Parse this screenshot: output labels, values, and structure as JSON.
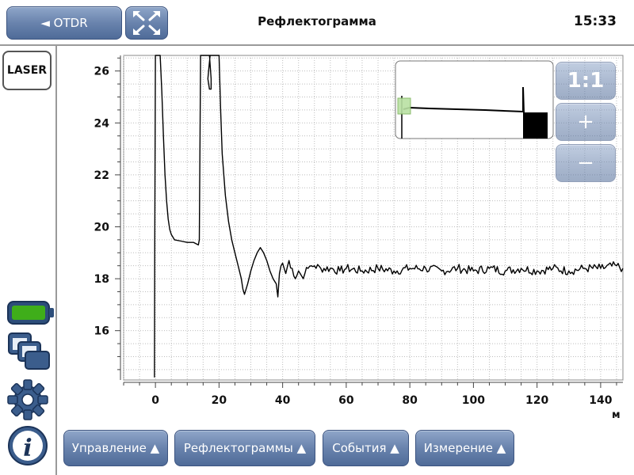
{
  "header": {
    "back_label": "◄ OTDR",
    "title": "Рефлектограмма",
    "clock": "15:33"
  },
  "sidebar": {
    "laser_label": "LASER",
    "icons": [
      "battery-icon",
      "windows-icon",
      "gear-icon",
      "info-icon"
    ]
  },
  "zoom": {
    "fit_label": "1:1",
    "plus_label": "+",
    "minus_label": "−"
  },
  "bottom_menu": {
    "control": "Управление ▲",
    "traces": "Рефлектограммы ▲",
    "events": "События ▲",
    "measure": "Измерение ▲"
  },
  "colors": {
    "button_blue": "#6983ad",
    "battery_green": "#3fae1a",
    "grid": "#bdbdbd",
    "trace": "#000000"
  },
  "chart_data": {
    "type": "line",
    "xlabel": "м",
    "ylabel": "",
    "xlim": [
      -10,
      147
    ],
    "ylim": [
      14.1,
      26.6
    ],
    "x_ticks": [
      0,
      20,
      40,
      60,
      80,
      100,
      120,
      140
    ],
    "y_ticks": [
      16,
      18,
      20,
      22,
      24,
      26
    ],
    "x_tick_labels": [
      "0",
      "20",
      "40",
      "60",
      "80",
      "100",
      "120",
      "140"
    ],
    "y_tick_labels": [
      "16",
      "18",
      "20",
      "22",
      "24",
      "26"
    ],
    "grid": true,
    "series": [
      {
        "x": [
          -0.3,
          -0.2,
          0,
          0.5,
          1,
          1.5,
          2,
          2.5,
          3,
          3.5,
          4,
          4.5,
          5,
          6,
          8,
          10,
          12,
          13.5,
          13.8,
          14,
          14.2,
          16.5,
          17,
          17.5,
          17.5,
          17,
          16.5,
          17.2,
          17.5,
          20,
          20.5,
          21,
          22,
          23,
          24,
          25,
          26,
          27,
          27.5,
          28,
          29,
          30,
          31,
          32,
          33,
          34,
          35,
          36,
          37,
          38,
          38.5,
          39,
          39.5,
          40,
          41,
          42,
          43,
          44,
          45,
          46,
          47,
          48,
          49,
          50,
          52,
          55,
          58,
          60,
          65,
          70,
          75,
          80,
          85,
          90,
          95,
          100,
          105,
          110,
          115,
          120,
          125,
          130,
          135,
          140,
          145,
          147
        ],
        "y": [
          14.2,
          19.5,
          26.6,
          26.6,
          26.6,
          26.6,
          25.2,
          23.5,
          22.0,
          21.0,
          20.3,
          19.9,
          19.7,
          19.5,
          19.45,
          19.4,
          19.4,
          19.3,
          19.5,
          23.0,
          26.6,
          26.6,
          26.6,
          25.7,
          25.3,
          25.3,
          25.7,
          26.6,
          26.6,
          26.6,
          24.5,
          22.8,
          21.2,
          20.2,
          19.5,
          19.0,
          18.5,
          18.0,
          17.6,
          17.4,
          17.8,
          18.3,
          18.7,
          19.0,
          19.2,
          19.0,
          18.7,
          18.3,
          18.0,
          17.8,
          17.3,
          18.2,
          18.5,
          18.6,
          18.2,
          18.7,
          18.4,
          18.0,
          18.3,
          18.1,
          18.2,
          18.4,
          18.5,
          18.5,
          18.4,
          18.4,
          18.3,
          18.4,
          18.3,
          18.4,
          18.3,
          18.4,
          18.4,
          18.3,
          18.4,
          18.3,
          18.4,
          18.3,
          18.4,
          18.3,
          18.4,
          18.3,
          18.4,
          18.4,
          18.5,
          18.4
        ]
      }
    ]
  }
}
